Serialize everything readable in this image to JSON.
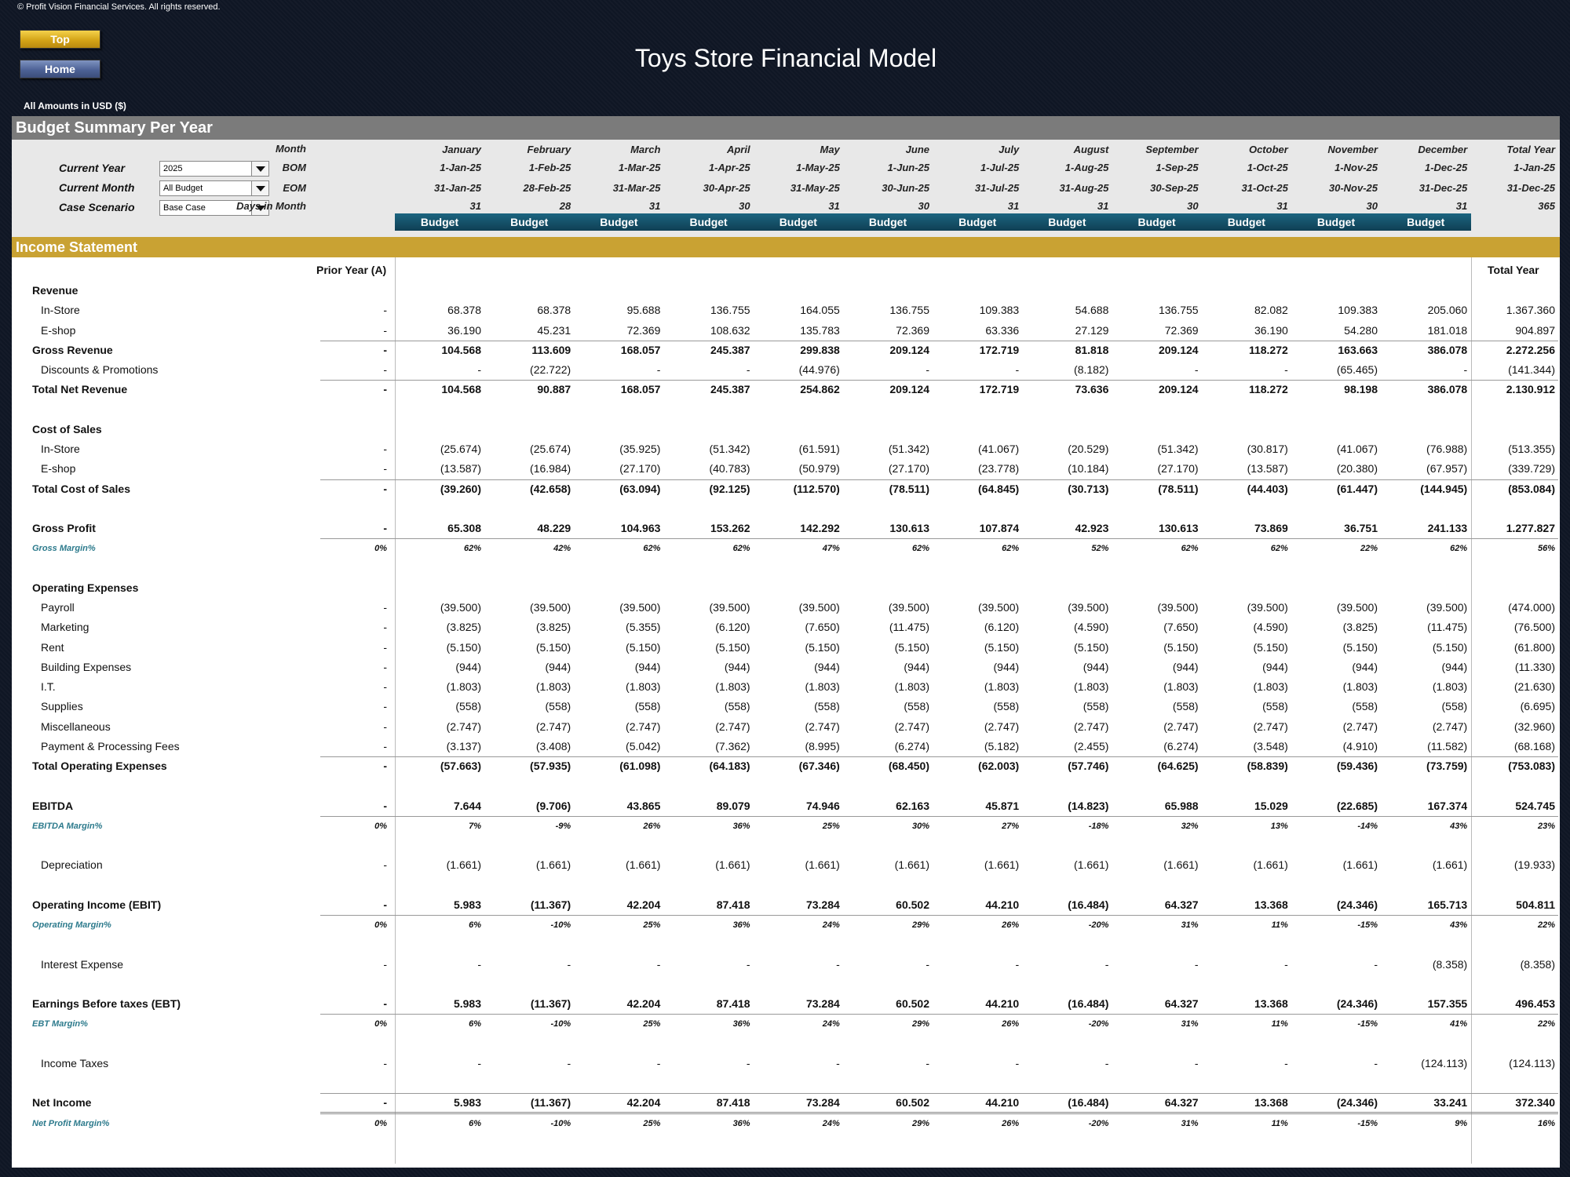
{
  "copyright": "© Profit Vision Financial Services. All rights reserved.",
  "nav": {
    "top_label": "Top",
    "home_label": "Home"
  },
  "title": "Toys Store Financial Model",
  "amounts_note": "All Amounts in  USD ($)",
  "summary_title": "Budget Summary Per Year",
  "controls": {
    "current_year": {
      "label": "Current Year",
      "value": "2025"
    },
    "current_month": {
      "label": "Current Month",
      "value": "All Budget"
    },
    "case_scenario": {
      "label": "Case Scenario",
      "value": "Base Case"
    }
  },
  "header_labels": {
    "month": "Month",
    "bom": "BOM",
    "eom": "EOM",
    "days": "Days in Month"
  },
  "months": [
    "January",
    "February",
    "March",
    "April",
    "May",
    "June",
    "July",
    "August",
    "September",
    "October",
    "November",
    "December",
    "Total Year"
  ],
  "bom": [
    "1-Jan-25",
    "1-Feb-25",
    "1-Mar-25",
    "1-Apr-25",
    "1-May-25",
    "1-Jun-25",
    "1-Jul-25",
    "1-Aug-25",
    "1-Sep-25",
    "1-Oct-25",
    "1-Nov-25",
    "1-Dec-25",
    "1-Jan-25"
  ],
  "eom": [
    "31-Jan-25",
    "28-Feb-25",
    "31-Mar-25",
    "30-Apr-25",
    "31-May-25",
    "30-Jun-25",
    "31-Jul-25",
    "31-Aug-25",
    "30-Sep-25",
    "31-Oct-25",
    "30-Nov-25",
    "31-Dec-25",
    "31-Dec-25"
  ],
  "days": [
    "31",
    "28",
    "31",
    "30",
    "31",
    "30",
    "31",
    "31",
    "30",
    "31",
    "30",
    "31",
    "365"
  ],
  "budget_labels": [
    "Budget",
    "Budget",
    "Budget",
    "Budget",
    "Budget",
    "Budget",
    "Budget",
    "Budget",
    "Budget",
    "Budget",
    "Budget",
    "Budget"
  ],
  "income_title": "Income Statement",
  "prior_year_header": "Prior Year (A)",
  "total_year_header": "Total Year",
  "rows": [
    {
      "label": "Revenue",
      "indent": 0,
      "style": "bold",
      "section": true
    },
    {
      "label": "In-Store",
      "indent": 1,
      "style": "normal",
      "prior": "-",
      "values": [
        "68.378",
        "68.378",
        "95.688",
        "136.755",
        "164.055",
        "136.755",
        "109.383",
        "54.688",
        "136.755",
        "82.082",
        "109.383",
        "205.060",
        "1.367.360"
      ]
    },
    {
      "label": "E-shop",
      "indent": 1,
      "style": "normal",
      "prior": "-",
      "values": [
        "36.190",
        "45.231",
        "72.369",
        "108.632",
        "135.783",
        "72.369",
        "63.336",
        "27.129",
        "72.369",
        "36.190",
        "54.280",
        "181.018",
        "904.897"
      ]
    },
    {
      "label": "Gross Revenue",
      "indent": 0,
      "style": "bold",
      "prior": "-",
      "rule": "above",
      "values": [
        "104.568",
        "113.609",
        "168.057",
        "245.387",
        "299.838",
        "209.124",
        "172.719",
        "81.818",
        "209.124",
        "118.272",
        "163.663",
        "386.078",
        "2.272.256"
      ]
    },
    {
      "label": "Discounts & Promotions",
      "indent": 1,
      "style": "normal",
      "prior": "-",
      "values": [
        "-",
        "(22.722)",
        "-",
        "-",
        "(44.976)",
        "-",
        "-",
        "(8.182)",
        "-",
        "-",
        "(65.465)",
        "-",
        "(141.344)"
      ]
    },
    {
      "label": "Total Net Revenue",
      "indent": 0,
      "style": "bold",
      "prior": "-",
      "rule": "above",
      "values": [
        "104.568",
        "90.887",
        "168.057",
        "245.387",
        "254.862",
        "209.124",
        "172.719",
        "73.636",
        "209.124",
        "118.272",
        "98.198",
        "386.078",
        "2.130.912"
      ]
    },
    {
      "spacer": true
    },
    {
      "label": "Cost of Sales",
      "indent": 0,
      "style": "bold",
      "section": true
    },
    {
      "label": "In-Store",
      "indent": 1,
      "style": "normal",
      "prior": "-",
      "values": [
        "(25.674)",
        "(25.674)",
        "(35.925)",
        "(51.342)",
        "(61.591)",
        "(51.342)",
        "(41.067)",
        "(20.529)",
        "(51.342)",
        "(30.817)",
        "(41.067)",
        "(76.988)",
        "(513.355)"
      ]
    },
    {
      "label": "E-shop",
      "indent": 1,
      "style": "normal",
      "prior": "-",
      "values": [
        "(13.587)",
        "(16.984)",
        "(27.170)",
        "(40.783)",
        "(50.979)",
        "(27.170)",
        "(23.778)",
        "(10.184)",
        "(27.170)",
        "(13.587)",
        "(20.380)",
        "(67.957)",
        "(339.729)"
      ]
    },
    {
      "label": "Total Cost of Sales",
      "indent": 0,
      "style": "bold",
      "prior": "-",
      "rule": "above",
      "values": [
        "(39.260)",
        "(42.658)",
        "(63.094)",
        "(92.125)",
        "(112.570)",
        "(78.511)",
        "(64.845)",
        "(30.713)",
        "(78.511)",
        "(44.403)",
        "(61.447)",
        "(144.945)",
        "(853.084)"
      ]
    },
    {
      "spacer": true
    },
    {
      "label": "Gross Profit",
      "indent": 0,
      "style": "bold",
      "prior": "-",
      "values": [
        "65.308",
        "48.229",
        "104.963",
        "153.262",
        "142.292",
        "130.613",
        "107.874",
        "42.923",
        "130.613",
        "73.869",
        "36.751",
        "241.133",
        "1.277.827"
      ]
    },
    {
      "label": "Gross Margin%",
      "indent": 0,
      "style": "margin",
      "prior": "0%",
      "rule": "above",
      "values": [
        "62%",
        "42%",
        "62%",
        "62%",
        "47%",
        "62%",
        "62%",
        "52%",
        "62%",
        "62%",
        "22%",
        "62%",
        "56%"
      ]
    },
    {
      "spacer": true
    },
    {
      "label": "Operating Expenses",
      "indent": 0,
      "style": "bold",
      "section": true
    },
    {
      "label": "Payroll",
      "indent": 1,
      "style": "normal",
      "prior": "-",
      "values": [
        "(39.500)",
        "(39.500)",
        "(39.500)",
        "(39.500)",
        "(39.500)",
        "(39.500)",
        "(39.500)",
        "(39.500)",
        "(39.500)",
        "(39.500)",
        "(39.500)",
        "(39.500)",
        "(474.000)"
      ]
    },
    {
      "label": "Marketing",
      "indent": 1,
      "style": "normal",
      "prior": "-",
      "values": [
        "(3.825)",
        "(3.825)",
        "(5.355)",
        "(6.120)",
        "(7.650)",
        "(11.475)",
        "(6.120)",
        "(4.590)",
        "(7.650)",
        "(4.590)",
        "(3.825)",
        "(11.475)",
        "(76.500)"
      ]
    },
    {
      "label": "Rent",
      "indent": 1,
      "style": "normal",
      "prior": "-",
      "values": [
        "(5.150)",
        "(5.150)",
        "(5.150)",
        "(5.150)",
        "(5.150)",
        "(5.150)",
        "(5.150)",
        "(5.150)",
        "(5.150)",
        "(5.150)",
        "(5.150)",
        "(5.150)",
        "(61.800)"
      ]
    },
    {
      "label": "Building Expenses",
      "indent": 1,
      "style": "normal",
      "prior": "-",
      "values": [
        "(944)",
        "(944)",
        "(944)",
        "(944)",
        "(944)",
        "(944)",
        "(944)",
        "(944)",
        "(944)",
        "(944)",
        "(944)",
        "(944)",
        "(11.330)"
      ]
    },
    {
      "label": "I.T.",
      "indent": 1,
      "style": "normal",
      "prior": "-",
      "values": [
        "(1.803)",
        "(1.803)",
        "(1.803)",
        "(1.803)",
        "(1.803)",
        "(1.803)",
        "(1.803)",
        "(1.803)",
        "(1.803)",
        "(1.803)",
        "(1.803)",
        "(1.803)",
        "(21.630)"
      ]
    },
    {
      "label": "Supplies",
      "indent": 1,
      "style": "normal",
      "prior": "-",
      "values": [
        "(558)",
        "(558)",
        "(558)",
        "(558)",
        "(558)",
        "(558)",
        "(558)",
        "(558)",
        "(558)",
        "(558)",
        "(558)",
        "(558)",
        "(6.695)"
      ]
    },
    {
      "label": "Miscellaneous",
      "indent": 1,
      "style": "normal",
      "prior": "-",
      "values": [
        "(2.747)",
        "(2.747)",
        "(2.747)",
        "(2.747)",
        "(2.747)",
        "(2.747)",
        "(2.747)",
        "(2.747)",
        "(2.747)",
        "(2.747)",
        "(2.747)",
        "(2.747)",
        "(32.960)"
      ]
    },
    {
      "label": "Payment & Processing Fees",
      "indent": 1,
      "style": "normal",
      "prior": "-",
      "values": [
        "(3.137)",
        "(3.408)",
        "(5.042)",
        "(7.362)",
        "(8.995)",
        "(6.274)",
        "(5.182)",
        "(2.455)",
        "(6.274)",
        "(3.548)",
        "(4.910)",
        "(11.582)",
        "(68.168)"
      ]
    },
    {
      "label": "Total Operating Expenses",
      "indent": 0,
      "style": "bold",
      "prior": "-",
      "rule": "above",
      "values": [
        "(57.663)",
        "(57.935)",
        "(61.098)",
        "(64.183)",
        "(67.346)",
        "(68.450)",
        "(62.003)",
        "(57.746)",
        "(64.625)",
        "(58.839)",
        "(59.436)",
        "(73.759)",
        "(753.083)"
      ]
    },
    {
      "spacer": true
    },
    {
      "label": "EBITDA",
      "indent": 0,
      "style": "bold",
      "prior": "-",
      "values": [
        "7.644",
        "(9.706)",
        "43.865",
        "89.079",
        "74.946",
        "62.163",
        "45.871",
        "(14.823)",
        "65.988",
        "15.029",
        "(22.685)",
        "167.374",
        "524.745"
      ]
    },
    {
      "label": "EBITDA Margin%",
      "indent": 0,
      "style": "margin",
      "prior": "0%",
      "rule": "above",
      "values": [
        "7%",
        "-9%",
        "26%",
        "36%",
        "25%",
        "30%",
        "27%",
        "-18%",
        "32%",
        "13%",
        "-14%",
        "43%",
        "23%"
      ]
    },
    {
      "spacer": true
    },
    {
      "label": "Depreciation",
      "indent": 1,
      "style": "normal",
      "prior": "-",
      "values": [
        "(1.661)",
        "(1.661)",
        "(1.661)",
        "(1.661)",
        "(1.661)",
        "(1.661)",
        "(1.661)",
        "(1.661)",
        "(1.661)",
        "(1.661)",
        "(1.661)",
        "(1.661)",
        "(19.933)"
      ]
    },
    {
      "spacer": true
    },
    {
      "label": "Operating Income (EBIT)",
      "indent": 0,
      "style": "bold",
      "prior": "-",
      "values": [
        "5.983",
        "(11.367)",
        "42.204",
        "87.418",
        "73.284",
        "60.502",
        "44.210",
        "(16.484)",
        "64.327",
        "13.368",
        "(24.346)",
        "165.713",
        "504.811"
      ]
    },
    {
      "label": "Operating Margin%",
      "indent": 0,
      "style": "margin",
      "prior": "0%",
      "rule": "above",
      "values": [
        "6%",
        "-10%",
        "25%",
        "36%",
        "24%",
        "29%",
        "26%",
        "-20%",
        "31%",
        "11%",
        "-15%",
        "43%",
        "22%"
      ]
    },
    {
      "spacer": true
    },
    {
      "label": "Interest Expense",
      "indent": 1,
      "style": "normal",
      "prior": "-",
      "values": [
        "-",
        "-",
        "-",
        "-",
        "-",
        "-",
        "-",
        "-",
        "-",
        "-",
        "-",
        "(8.358)",
        "(8.358)"
      ]
    },
    {
      "spacer": true
    },
    {
      "label": "Earnings Before taxes (EBT)",
      "indent": 0,
      "style": "bold",
      "prior": "-",
      "values": [
        "5.983",
        "(11.367)",
        "42.204",
        "87.418",
        "73.284",
        "60.502",
        "44.210",
        "(16.484)",
        "64.327",
        "13.368",
        "(24.346)",
        "157.355",
        "496.453"
      ]
    },
    {
      "label": "EBT Margin%",
      "indent": 0,
      "style": "margin",
      "prior": "0%",
      "rule": "above",
      "values": [
        "6%",
        "-10%",
        "25%",
        "36%",
        "24%",
        "29%",
        "26%",
        "-20%",
        "31%",
        "11%",
        "-15%",
        "41%",
        "22%"
      ]
    },
    {
      "spacer": true
    },
    {
      "label": "Income Taxes",
      "indent": 1,
      "style": "normal",
      "prior": "-",
      "values": [
        "-",
        "-",
        "-",
        "-",
        "-",
        "-",
        "-",
        "-",
        "-",
        "-",
        "-",
        "(124.113)",
        "(124.113)"
      ]
    },
    {
      "spacer": true
    },
    {
      "label": "Net Income",
      "indent": 0,
      "style": "bold",
      "prior": "-",
      "rule": "above",
      "values": [
        "5.983",
        "(11.367)",
        "42.204",
        "87.418",
        "73.284",
        "60.502",
        "44.210",
        "(16.484)",
        "64.327",
        "13.368",
        "(24.346)",
        "33.241",
        "372.340"
      ]
    },
    {
      "label": "Net Profit Margin%",
      "indent": 0,
      "style": "margin",
      "prior": "0%",
      "rule": "double",
      "values": [
        "6%",
        "-10%",
        "25%",
        "36%",
        "24%",
        "29%",
        "26%",
        "-20%",
        "31%",
        "11%",
        "-15%",
        "9%",
        "16%"
      ]
    }
  ]
}
